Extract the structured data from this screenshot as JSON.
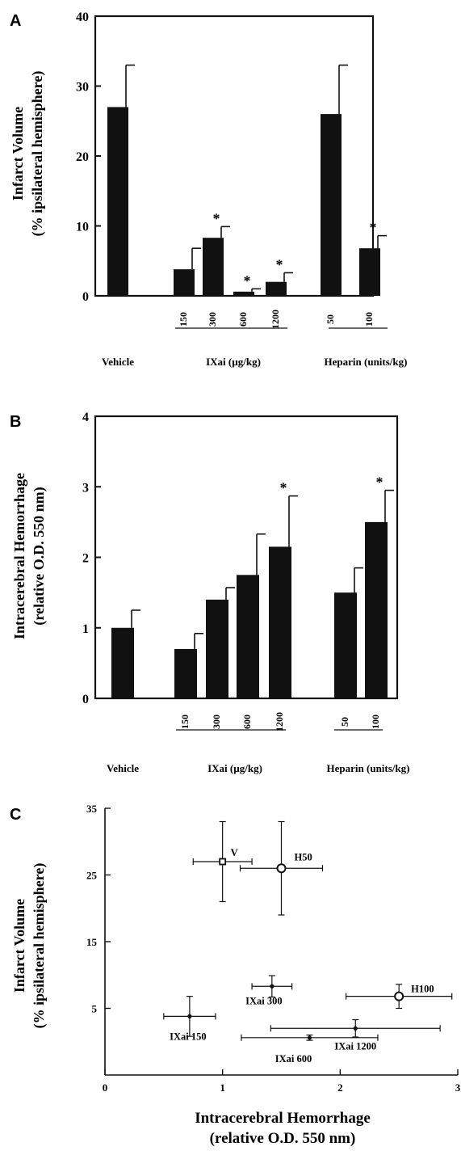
{
  "chart_data": [
    {
      "type": "bar",
      "panel_label": "A",
      "ylabel_line1": "Infarct Volume",
      "ylabel_line2": "(% ipsilateral hemisphere)",
      "ylim": [
        0,
        40
      ],
      "yticks": [
        "0",
        "10",
        "20",
        "30",
        "40"
      ],
      "categories": [
        "",
        "150",
        "300",
        "600",
        "1200",
        "50",
        "100"
      ],
      "values": [
        27,
        3.8,
        8.3,
        0.6,
        2.0,
        26,
        6.8
      ],
      "errors": [
        6,
        3,
        1.6,
        0.4,
        1.3,
        7,
        1.8
      ],
      "significant": [
        false,
        false,
        true,
        true,
        true,
        false,
        true
      ],
      "star": "*",
      "groups": [
        "Vehicle",
        "IXai (µg/kg)",
        "Heparin (units/kg)"
      ]
    },
    {
      "type": "bar",
      "panel_label": "B",
      "ylabel_line1": "Intracerebral Hemorrhage",
      "ylabel_line2": "(relative O.D. 550 nm)",
      "ylim": [
        0,
        4
      ],
      "yticks": [
        "0",
        "1",
        "2",
        "3",
        "4"
      ],
      "categories": [
        "",
        "150",
        "300",
        "600",
        "1200",
        "50",
        "100"
      ],
      "values": [
        1.0,
        0.7,
        1.4,
        1.75,
        2.15,
        1.5,
        2.5
      ],
      "errors": [
        0.25,
        0.22,
        0.17,
        0.58,
        0.72,
        0.35,
        0.45
      ],
      "significant": [
        false,
        false,
        false,
        false,
        true,
        false,
        true
      ],
      "star": "*",
      "groups": [
        "Vehicle",
        "IXai (µg/kg)",
        "Heparin (units/kg)"
      ]
    },
    {
      "type": "scatter",
      "panel_label": "C",
      "xlabel_line1": "Intracerebral Hemorrhage",
      "xlabel_line2": "(relative O.D. 550 nm)",
      "ylabel_line1": "Infarct Volume",
      "ylabel_line2": "(% ipsilateral hemisphere)",
      "xlim": [
        0,
        3
      ],
      "ylim": [
        -5,
        35
      ],
      "xticks": [
        "0",
        "1",
        "2",
        "3"
      ],
      "yticks": [
        "5",
        "15",
        "25",
        "35"
      ],
      "points": [
        {
          "label": "V",
          "x": 1.0,
          "y": 27,
          "xerr": 0.25,
          "yerr": 6,
          "marker": "square"
        },
        {
          "label": "H50",
          "x": 1.5,
          "y": 26,
          "xerr": 0.35,
          "yerr": 7,
          "marker": "circle"
        },
        {
          "label": "IXai 300",
          "x": 1.42,
          "y": 8.3,
          "xerr": 0.17,
          "yerr": 1.6,
          "marker": "dot"
        },
        {
          "label": "H100",
          "x": 2.5,
          "y": 6.8,
          "xerr": 0.45,
          "yerr": 1.8,
          "marker": "circle"
        },
        {
          "label": "IXai 150",
          "x": 0.72,
          "y": 3.8,
          "xerr": 0.22,
          "yerr": 3,
          "marker": "dot"
        },
        {
          "label": "IXai 1200",
          "x": 2.13,
          "y": 2.0,
          "xerr": 0.72,
          "yerr": 1.3,
          "marker": "dot"
        },
        {
          "label": "IXai 600",
          "x": 1.74,
          "y": 0.6,
          "xerr": 0.58,
          "yerr": 0.4,
          "marker": "dot"
        }
      ]
    }
  ]
}
